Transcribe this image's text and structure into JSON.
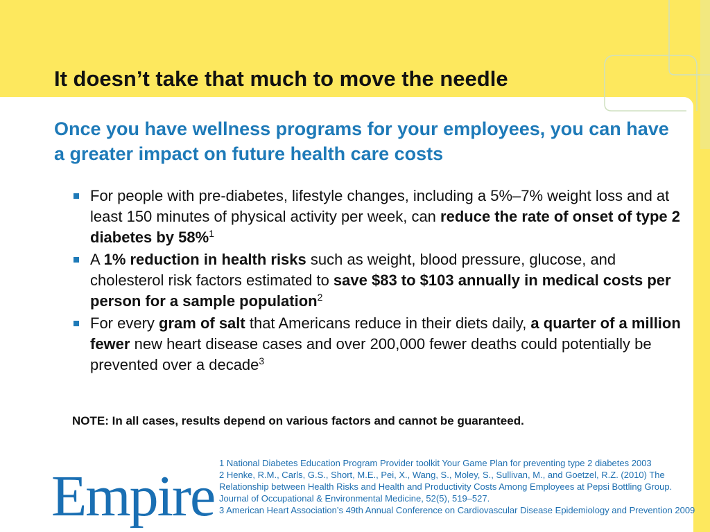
{
  "title": "It doesn’t take that much to move the needle",
  "subtitle": "Once you have wellness programs for your employees, you can have a greater impact on future health care costs",
  "bullets": [
    {
      "runs": [
        {
          "text": "For people with pre-diabetes, lifestyle changes, including a 5%–7% weight loss and at least 150 minutes of physical activity per week, can ",
          "bold": false
        },
        {
          "text": "reduce the rate of onset of type 2 diabetes by 58%",
          "bold": true
        },
        {
          "text": "1",
          "bold": false,
          "sup": true
        }
      ]
    },
    {
      "runs": [
        {
          "text": "A ",
          "bold": false
        },
        {
          "text": "1% reduction in health risks",
          "bold": true
        },
        {
          "text": " such as weight, blood pressure, glucose, and cholesterol risk factors estimated to ",
          "bold": false
        },
        {
          "text": "save $83 to $103 annually in medical costs per person for a sample population",
          "bold": true
        },
        {
          "text": "2",
          "bold": false,
          "sup": true
        }
      ]
    },
    {
      "runs": [
        {
          "text": "For every ",
          "bold": false
        },
        {
          "text": "gram of salt",
          "bold": true
        },
        {
          "text": " that Americans reduce in their diets daily, ",
          "bold": false
        },
        {
          "text": "a quarter of a million fewer",
          "bold": true
        },
        {
          "text": " new heart disease cases and over 200,000 fewer deaths could potentially be prevented over a decade",
          "bold": false
        },
        {
          "text": "3",
          "bold": false,
          "sup": true
        }
      ]
    }
  ],
  "note": "NOTE:  In all cases, results depend on various factors and cannot be guaranteed.",
  "footnotes": [
    "1 National Diabetes Education Program Provider toolkit Your Game Plan for preventing type 2 diabetes 2003",
    "2 Henke, R.M., Carls, G.S., Short, M.E., Pei, X., Wang, S., Moley, S., Sullivan, M., and Goetzel, R.Z. (2010) The Relationship between Health Risks and Health and Productivity Costs Among Employees at Pepsi Bottling Group. Journal of Occupational & Environmental Medicine, 52(5), 519–527.",
    "3 American Heart Association’s 49th Annual Conference on Cardiovascular Disease Epidemiology and Prevention 2009"
  ],
  "logo": "Empire"
}
